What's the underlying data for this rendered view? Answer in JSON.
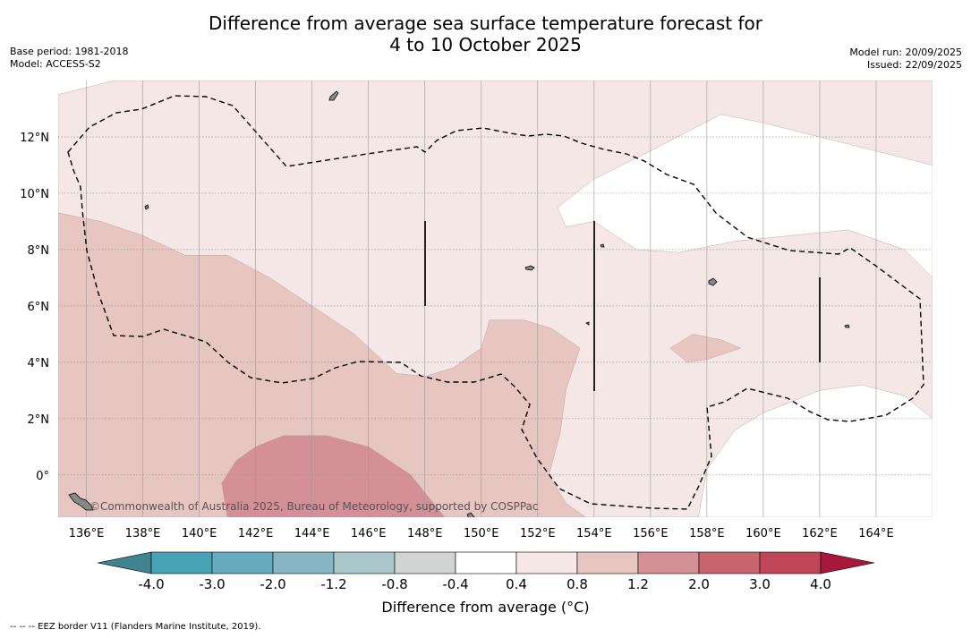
{
  "header": {
    "title_line1": "Difference from average sea surface temperature forecast for",
    "title_line2": "4 to 10 October 2025",
    "base_period": "Base period: 1981-2018",
    "model": "Model: ACCESS-S2",
    "model_run": "Model run: 20/09/2025",
    "issued": "Issued: 22/09/2025"
  },
  "copyright": "©Commonwealth of Australia 2025, Bureau of Meteorology, supported by COSPPac",
  "footer": "--  --  -- EEZ border V11 (Flanders Marine Institute, 2019).",
  "colorbar_label": "Difference from average (°C)",
  "colors": {
    "bins": [
      "#3f8490",
      "#47a3b6",
      "#66aabd",
      "#86b6c3",
      "#aac8cc",
      "#d2d4d4",
      "#ffffff",
      "#f4e7e6",
      "#e7c5c1",
      "#d48f97",
      "#c9656f",
      "#be4656",
      "#a8183a"
    ],
    "grid": "#999999"
  },
  "chart_data": {
    "type": "heatmap",
    "title": "Difference from average sea surface temperature forecast for 4 to 10 October 2025",
    "lon_range": [
      135,
      166
    ],
    "lat_range": [
      -1.5,
      14
    ],
    "x_ticks": [
      "136°E",
      "138°E",
      "140°E",
      "142°E",
      "144°E",
      "146°E",
      "148°E",
      "150°E",
      "152°E",
      "154°E",
      "156°E",
      "158°E",
      "160°E",
      "162°E",
      "164°E"
    ],
    "x_tick_values": [
      136,
      138,
      140,
      142,
      144,
      146,
      148,
      150,
      152,
      154,
      156,
      158,
      160,
      162,
      164
    ],
    "y_ticks": [
      "0°",
      "2°N",
      "4°N",
      "6°N",
      "8°N",
      "10°N",
      "12°N"
    ],
    "y_tick_values": [
      0,
      2,
      4,
      6,
      8,
      10,
      12
    ],
    "colorbar_ticks": [
      "-4.0",
      "-3.0",
      "-2.0",
      "-1.2",
      "-0.8",
      "-0.4",
      "0.4",
      "0.8",
      "1.2",
      "2.0",
      "3.0",
      "4.0"
    ],
    "regions": [
      {
        "level": "0.4 to 0.8",
        "bin": 7,
        "polygon": [
          [
            135,
            13.5
          ],
          [
            137,
            14
          ],
          [
            166,
            14
          ],
          [
            166,
            -1.5
          ],
          [
            135,
            -1.5
          ]
        ]
      },
      {
        "level": "-0.4 to 0.4",
        "bin": 6,
        "polygon": [
          [
            152.7,
            9.5
          ],
          [
            154,
            10.5
          ],
          [
            156,
            11.5
          ],
          [
            158.5,
            12.8
          ],
          [
            160,
            12.5
          ],
          [
            162,
            12
          ],
          [
            166,
            11
          ],
          [
            166,
            7
          ],
          [
            165,
            8
          ],
          [
            163,
            8.7
          ],
          [
            161,
            8.5
          ],
          [
            159,
            8.3
          ],
          [
            157,
            7.9
          ],
          [
            155.5,
            8
          ],
          [
            154,
            9
          ],
          [
            153,
            8.8
          ]
        ]
      },
      {
        "level": "-0.4 to 0.4",
        "bin": 6,
        "polygon": [
          [
            157.7,
            -1.5
          ],
          [
            158,
            0.2
          ],
          [
            159,
            1.6
          ],
          [
            160,
            2.2
          ],
          [
            162,
            3
          ],
          [
            163.5,
            3.2
          ],
          [
            165,
            2.8
          ],
          [
            166,
            2
          ],
          [
            166,
            -1.5
          ]
        ]
      },
      {
        "level": "0.8 to 1.2",
        "bin": 8,
        "polygon": [
          [
            135,
            9.3
          ],
          [
            136.5,
            9
          ],
          [
            138,
            8.5
          ],
          [
            139.5,
            7.8
          ],
          [
            141,
            7.8
          ],
          [
            142.5,
            7
          ],
          [
            144,
            6
          ],
          [
            145.5,
            5
          ],
          [
            147,
            3.6
          ],
          [
            148,
            3.5
          ],
          [
            149,
            3.8
          ],
          [
            150,
            4.5
          ],
          [
            150.3,
            5.5
          ],
          [
            151.5,
            5.5
          ],
          [
            152.5,
            5.2
          ],
          [
            153.5,
            4.5
          ],
          [
            153,
            3
          ],
          [
            152.8,
            1.5
          ],
          [
            152.4,
            0
          ],
          [
            153,
            -1
          ],
          [
            153.7,
            -1.5
          ],
          [
            135,
            -1.5
          ]
        ]
      },
      {
        "level": "0.8 to 1.2",
        "bin": 8,
        "polygon": [
          [
            156.7,
            4.5
          ],
          [
            157.5,
            5
          ],
          [
            158.5,
            4.8
          ],
          [
            159.2,
            4.5
          ],
          [
            158,
            4.1
          ],
          [
            157.3,
            4
          ]
        ]
      },
      {
        "level": "1.2 to 2.0",
        "bin": 9,
        "polygon": [
          [
            141,
            -1.5
          ],
          [
            140.8,
            -0.3
          ],
          [
            141.3,
            0.5
          ],
          [
            142,
            1
          ],
          [
            143,
            1.4
          ],
          [
            144.5,
            1.4
          ],
          [
            146,
            1
          ],
          [
            147.5,
            0
          ],
          [
            148.3,
            -1
          ],
          [
            148.7,
            -1.5
          ]
        ]
      }
    ]
  }
}
